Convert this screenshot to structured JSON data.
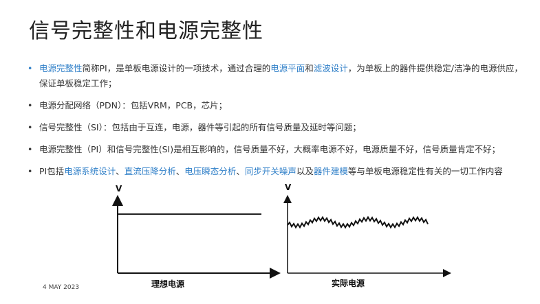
{
  "title": "信号完整性和电源完整性",
  "bullets": [
    {
      "segments": [
        {
          "text": "电源完整性",
          "link": true
        },
        {
          "text": "简称PI，是单板电源设计的一项技术，通过合理的",
          "link": false
        },
        {
          "text": "电源平面",
          "link": true
        },
        {
          "text": "和",
          "link": false
        },
        {
          "text": "滤波设计",
          "link": true
        },
        {
          "text": "，为单板上的器件提供稳定/洁净的电源供应，保证单板稳定工作；",
          "link": false
        }
      ]
    },
    {
      "segments": [
        {
          "text": "电源分配网络（PDN）：包括VRM，PCB，芯片；",
          "link": false
        }
      ]
    },
    {
      "segments": [
        {
          "text": "信号完整性（SI）：包括由于互连，电源，器件等引起的所有信号质量及延时等问题；",
          "link": false
        }
      ]
    },
    {
      "segments": [
        {
          "text": "电源完整性（PI）和信号完整性(SI)是相互影响的，信号质量不好，大概率电源不好，电源质量不好，信号质量肯定不好；",
          "link": false
        }
      ]
    },
    {
      "segments": [
        {
          "text": "PI包括",
          "link": false
        },
        {
          "text": "电源系统设计",
          "link": true
        },
        {
          "text": "、",
          "link": false
        },
        {
          "text": "直流压降分析",
          "link": true
        },
        {
          "text": "、",
          "link": false
        },
        {
          "text": "电压瞬态分析",
          "link": true
        },
        {
          "text": "、",
          "link": false
        },
        {
          "text": "同步开关噪声",
          "link": true
        },
        {
          "text": "以及",
          "link": false
        },
        {
          "text": "器件建模",
          "link": true
        },
        {
          "text": "等与单板电源稳定性有关的一切工作内容",
          "link": false
        }
      ]
    }
  ],
  "bullet_symbol": "•",
  "colors": {
    "accent": "#2f7fc8",
    "text": "#333333"
  },
  "figures": {
    "ideal": {
      "axis_label": "V",
      "caption": "理想电源"
    },
    "actual": {
      "axis_label": "V",
      "caption": "实际电源"
    }
  },
  "footer": {
    "date": "4 MAY 2023"
  }
}
